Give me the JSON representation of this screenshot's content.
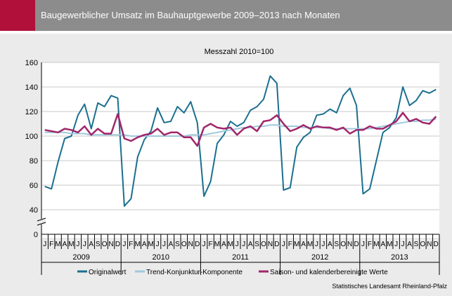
{
  "header": {
    "title": "Baugewerblicher Umsatz im Bauhauptgewerbe 2009–2013 nach Monaten",
    "accent_color": "#b0103a",
    "background_color": "#8c8c8c"
  },
  "footer": {
    "source": "Statistisches Landesamt Rheinland-Pfalz"
  },
  "chart_data": {
    "type": "line",
    "title": "",
    "subtitle": "Messzahl 2010=100",
    "xlabel": "",
    "ylabel": "",
    "y_ticks": [
      "160",
      "140",
      "120",
      "100",
      "80",
      "60",
      "40",
      "0"
    ],
    "ylim": [
      40,
      160
    ],
    "axis_break": true,
    "grid": true,
    "legend_position": "bottom",
    "month_labels": [
      "J",
      "F",
      "M",
      "A",
      "M",
      "J",
      "J",
      "A",
      "S",
      "O",
      "N",
      "D"
    ],
    "years": [
      "2009",
      "2010",
      "2011",
      "2012",
      "2013"
    ],
    "series": [
      {
        "name": "Originalwert",
        "color": "#1b6f8f",
        "values": [
          59,
          57,
          79,
          98,
          100,
          117,
          126,
          106,
          127,
          124,
          133,
          131,
          43,
          49,
          83,
          97,
          104,
          123,
          111,
          112,
          124,
          119,
          128,
          111,
          51,
          63,
          94,
          101,
          112,
          108,
          111,
          121,
          124,
          130,
          149,
          143,
          56,
          58,
          91,
          99,
          103,
          117,
          118,
          122,
          119,
          133,
          139,
          125,
          53,
          57,
          80,
          103,
          107,
          115,
          140,
          125,
          129,
          137,
          135,
          138
        ]
      },
      {
        "name": "Trend-Konjunktur-Komponente",
        "color": "#9fc8dc",
        "values": [
          103,
          103,
          103,
          103,
          102,
          102,
          102,
          101,
          101,
          101,
          101,
          101,
          101,
          100,
          100,
          100,
          100,
          100,
          100,
          100,
          100,
          100,
          101,
          101,
          101,
          102,
          103,
          104,
          105,
          106,
          107,
          107,
          108,
          108,
          109,
          109,
          108,
          108,
          108,
          107,
          107,
          107,
          107,
          106,
          106,
          106,
          106,
          106,
          106,
          106,
          107,
          108,
          109,
          110,
          111,
          112,
          112,
          113,
          113,
          114
        ]
      },
      {
        "name": "Saison- und kalenderbereinigte Werte",
        "color": "#a0266a",
        "values": [
          105,
          104,
          103,
          106,
          105,
          103,
          108,
          101,
          106,
          102,
          102,
          118,
          98,
          96,
          99,
          101,
          102,
          106,
          101,
          103,
          103,
          99,
          99,
          92,
          107,
          110,
          107,
          106,
          107,
          101,
          106,
          108,
          104,
          112,
          113,
          117,
          110,
          104,
          106,
          109,
          106,
          108,
          107,
          107,
          105,
          107,
          102,
          105,
          105,
          108,
          106,
          106,
          109,
          112,
          119,
          112,
          114,
          111,
          110,
          116
        ]
      }
    ]
  }
}
